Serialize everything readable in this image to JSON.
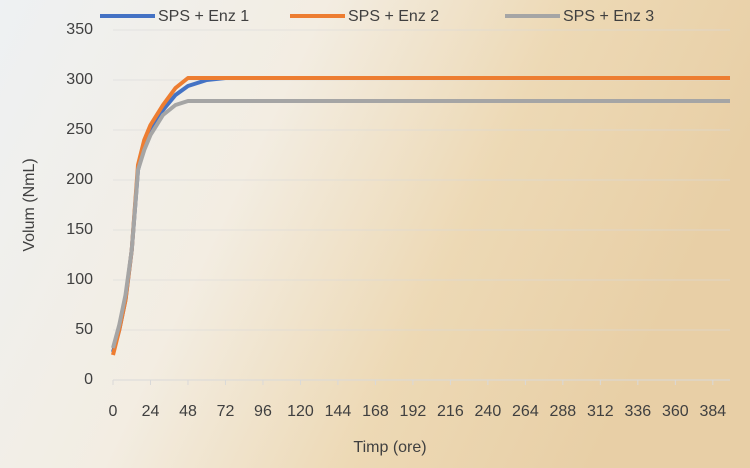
{
  "chart_data": {
    "type": "line",
    "x": [
      0,
      4,
      8,
      12,
      16,
      20,
      24,
      32,
      40,
      48,
      60,
      72,
      395
    ],
    "series": [
      {
        "name": "SPS + Enz 1",
        "color": "#4472c4",
        "values": [
          28,
          50,
          80,
          130,
          210,
          235,
          250,
          270,
          285,
          294,
          300,
          302,
          302
        ]
      },
      {
        "name": "SPS + Enz 2",
        "color": "#ed7d31",
        "values": [
          25,
          50,
          80,
          130,
          215,
          240,
          255,
          275,
          292,
          302,
          302,
          302,
          302
        ]
      },
      {
        "name": "SPS + Enz 3",
        "color": "#a5a5a5",
        "values": [
          32,
          55,
          85,
          130,
          210,
          230,
          245,
          265,
          275,
          279,
          279,
          279,
          279
        ]
      }
    ],
    "xlabel": "Timp (ore)",
    "ylabel": "Volum (NmL)",
    "xlim": [
      0,
      395
    ],
    "xticks": [
      0,
      24,
      48,
      72,
      96,
      120,
      144,
      168,
      192,
      216,
      240,
      264,
      288,
      312,
      336,
      360,
      384
    ],
    "ylim": [
      0,
      350
    ],
    "yticks": [
      0,
      50,
      100,
      150,
      200,
      250,
      300,
      350
    ],
    "grid": true,
    "legend": "top"
  }
}
